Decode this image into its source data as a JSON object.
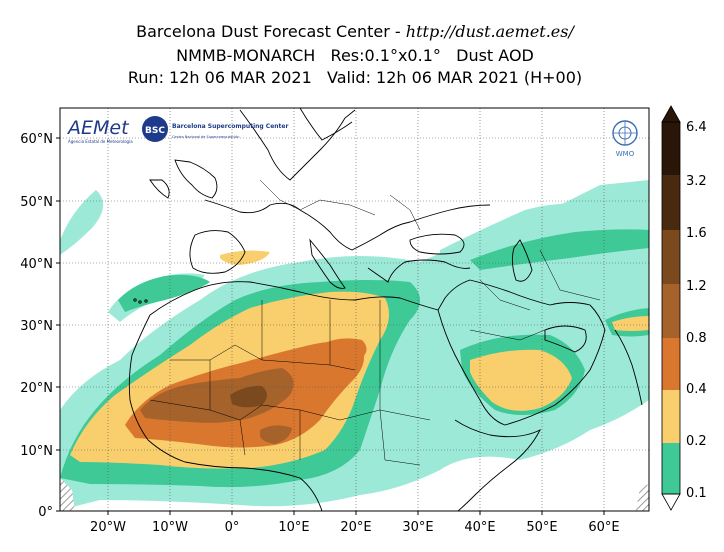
{
  "header": {
    "line1_prefix": "Barcelona Dust Forecast Center - ",
    "line1_url": "http://dust.aemet.es/",
    "line2": "NMMB-MONARCH   Res:0.1°x0.1°   Dust AOD",
    "line3": "Run: 12h 06 MAR 2021   Valid: 12h 06 MAR 2021 (H+00)"
  },
  "logos": {
    "aemet": "AEMet",
    "aemet_sub": "Agencia Estatal de Meteorología",
    "bsc_badge": "BSC",
    "bsc_text": "Barcelona Supercomputing Center",
    "bsc_sub": "Centro Nacional de Supercomputación",
    "wmo": "WMO"
  },
  "map": {
    "lat_ticks": [
      "60°N",
      "50°N",
      "40°N",
      "30°N",
      "20°N",
      "10°N",
      "0°"
    ],
    "lon_ticks": [
      "20°W",
      "10°W",
      "0°",
      "10°E",
      "20°E",
      "30°E",
      "40°E",
      "50°E",
      "60°E"
    ]
  },
  "legend": {
    "labels": [
      "6.4",
      "3.2",
      "1.6",
      "1.2",
      "0.8",
      "0.4",
      "0.2",
      "0.1"
    ],
    "colors": [
      "#2a1608",
      "#4a2a0e",
      "#7a4a1e",
      "#a5622a",
      "#d9772e",
      "#f8cf6c",
      "#3ec996",
      "#9ce9d8"
    ]
  }
}
